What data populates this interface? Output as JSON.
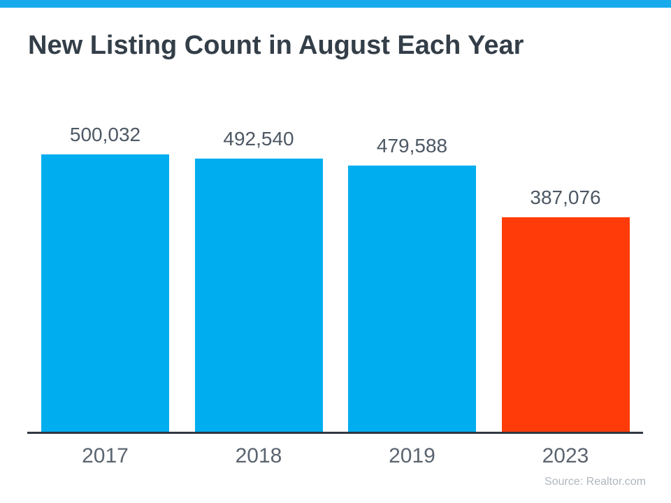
{
  "chart_data": {
    "type": "bar",
    "title": "New Listing Count in August Each Year",
    "categories": [
      "2017",
      "2018",
      "2019",
      "2023"
    ],
    "values": [
      500032,
      492540,
      479588,
      387076
    ],
    "value_labels": [
      "500,032",
      "492,540",
      "479,588",
      "387,076"
    ],
    "bar_colors": [
      "#00AEEF",
      "#00AEEF",
      "#00AEEF",
      "#FF3B09"
    ],
    "xlabel": "",
    "ylabel": "",
    "ylim": [
      0,
      530000
    ],
    "grid": false,
    "legend": false,
    "source": "Source: Realtor.com",
    "colors": {
      "accent_strip": "#17AAEC",
      "bar_blue": "#00AEEF",
      "bar_red": "#FF3B09",
      "axis_line": "#2F3842",
      "title": "#333E48",
      "value_label": "#4D5864",
      "tick_label": "#5B6570",
      "source": "#AFB6BE"
    }
  }
}
